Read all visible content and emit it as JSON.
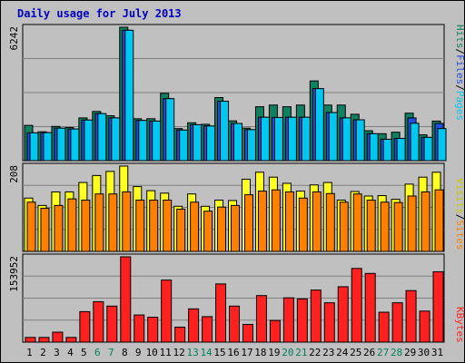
{
  "chart_data": {
    "type": "bar",
    "title": "Daily usage for July 2013",
    "days": [
      "1",
      "2",
      "3",
      "4",
      "5",
      "6",
      "7",
      "8",
      "9",
      "10",
      "11",
      "12",
      "13",
      "14",
      "15",
      "16",
      "17",
      "18",
      "19",
      "20",
      "21",
      "22",
      "23",
      "24",
      "25",
      "26",
      "27",
      "28",
      "29",
      "30",
      "31"
    ],
    "weekend_days": [
      "6",
      "7",
      "13",
      "14",
      "20",
      "21",
      "27",
      "28"
    ],
    "panels": [
      {
        "ymax_label": "6242",
        "ymax": 6242,
        "series": [
          {
            "name": "Hits",
            "color": "#108060",
            "values": [
              1650,
              1350,
              1600,
              1550,
              2000,
              2300,
              2100,
              6242,
              1960,
              1960,
              3150,
              1500,
              1770,
              1700,
              2950,
              1860,
              1520,
              2520,
              2600,
              2520,
              2600,
              3730,
              2600,
              2600,
              2170,
              1400,
              1260,
              1330,
              2220,
              1210,
              1850
            ]
          },
          {
            "name": "Files",
            "color": "#2050e0",
            "values": [
              1300,
              1310,
              1520,
              1480,
              1900,
              2200,
              2000,
              6100,
              1880,
              1850,
              2900,
              1430,
              1680,
              1620,
              2780,
              1740,
              1450,
              2030,
              2020,
              2030,
              2030,
              3370,
              2250,
              2000,
              1910,
              1260,
              1000,
              1040,
              2000,
              1090,
              1740
            ]
          },
          {
            "name": "Pages",
            "color": "#00c8f0",
            "values": [
              1300,
              1310,
              1520,
              1480,
              1900,
              2200,
              2000,
              6100,
              1880,
              1850,
              2900,
              1430,
              1680,
              1620,
              2780,
              1740,
              1450,
              2030,
              2020,
              2030,
              2030,
              3370,
              2250,
              2000,
              1910,
              1260,
              1000,
              1040,
              1750,
              1090,
              1500
            ]
          }
        ]
      },
      {
        "ymax_label": "208",
        "ymax": 208,
        "series": [
          {
            "name": "Visits",
            "color": "#ffff20",
            "values": [
              130,
              112,
              145,
              145,
              168,
              185,
              195,
              208,
              158,
              148,
              142,
              110,
              140,
              110,
              125,
              124,
              176,
              193,
              181,
              166,
              147,
              162,
              168,
              125,
              146,
              135,
              136,
              127,
              164,
              181,
              193
            ]
          },
          {
            "name": "Sites",
            "color": "#ff8000",
            "values": [
              120,
              105,
              112,
              128,
              125,
              140,
              140,
              145,
              125,
              125,
              125,
              103,
              120,
              98,
              108,
              112,
              138,
              147,
              150,
              145,
              130,
              145,
              141,
              120,
              140,
              125,
              120,
              119,
              135,
              145,
              150
            ]
          }
        ]
      },
      {
        "ymax_label": "153952",
        "ymax": 153952,
        "series": [
          {
            "name": "KBytes",
            "color": "#ff2020",
            "values": [
              8500,
              8500,
              18000,
              8500,
              55000,
              73000,
              65000,
              153952,
              49000,
              45000,
              112000,
              27000,
              60000,
              46000,
              105000,
              65000,
              32000,
              84000,
              39000,
              80000,
              78000,
              94000,
              71000,
              100000,
              133000,
              124000,
              54000,
              71000,
              93000,
              56000,
              127000
            ]
          }
        ]
      }
    ],
    "side_labels": {
      "top": [
        {
          "text": "Hits",
          "color": "#108060"
        },
        {
          "text": "/",
          "color": "#000000"
        },
        {
          "text": "Files",
          "color": "#2050e0"
        },
        {
          "text": "/",
          "color": "#000000"
        },
        {
          "text": "Pages",
          "color": "#00c8f0"
        }
      ],
      "middle": [
        {
          "text": "Visits",
          "color": "#c8c800"
        },
        {
          "text": "/",
          "color": "#000000"
        },
        {
          "text": "Sites",
          "color": "#ff8000"
        }
      ],
      "bottom": [
        {
          "text": "KBytes",
          "color": "#ff2020"
        }
      ]
    },
    "colors": {
      "background": "#c0c0c0",
      "title": "#0000c0",
      "weekday_label": "#000000",
      "weekend_label": "#00805a"
    }
  }
}
